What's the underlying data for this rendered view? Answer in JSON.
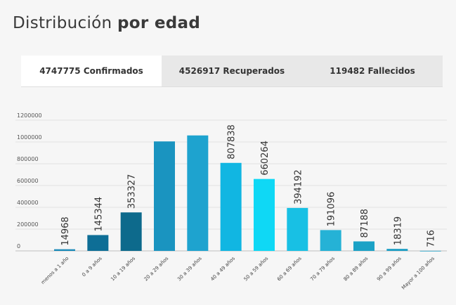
{
  "title": {
    "light": "Distribución",
    "bold": "por edad"
  },
  "tabs": [
    {
      "label": "4747775 Confirmados",
      "active": true
    },
    {
      "label": "4526917 Recuperados",
      "active": false
    },
    {
      "label": "119482 Fallecidos",
      "active": false
    }
  ],
  "chart_data": {
    "type": "bar",
    "title": "",
    "xlabel": "",
    "ylabel": "",
    "ylim": [
      0,
      1200000
    ],
    "yticks": [
      0,
      200000,
      400000,
      600000,
      800000,
      1000000,
      1200000
    ],
    "ytick_labels": [
      "0",
      "200000",
      "400000",
      "600000",
      "800000",
      "1000000",
      "1200000"
    ],
    "grid": true,
    "categories": [
      "menos a 1 año",
      "0 a 9 años",
      "10 a 19 años",
      "20 a 29 años",
      "30 a 39 años",
      "40 a 49 años",
      "50 a 59 años",
      "60 a 69 años",
      "70 a 79 años",
      "80 a 89 años",
      "90 a 99 años",
      "Mayor a 100 años"
    ],
    "values": [
      14968,
      145344,
      353327,
      1005000,
      1060000,
      807838,
      660264,
      394192,
      191096,
      87188,
      18319,
      716
    ],
    "data_labels": [
      "14968",
      "145344",
      "353327",
      "",
      "",
      "807838",
      "660264",
      "394192",
      "191096",
      "87188",
      "18319",
      "716"
    ],
    "colors": [
      "#1a8ab8",
      "#0e6e96",
      "#0d6a8c",
      "#1a94c0",
      "#1ea3cf",
      "#11b6e2",
      "#0fd8f5",
      "#18c0e4",
      "#25b2d6",
      "#1ba2c6",
      "#1c9ec4",
      "#1c9ec4"
    ]
  }
}
